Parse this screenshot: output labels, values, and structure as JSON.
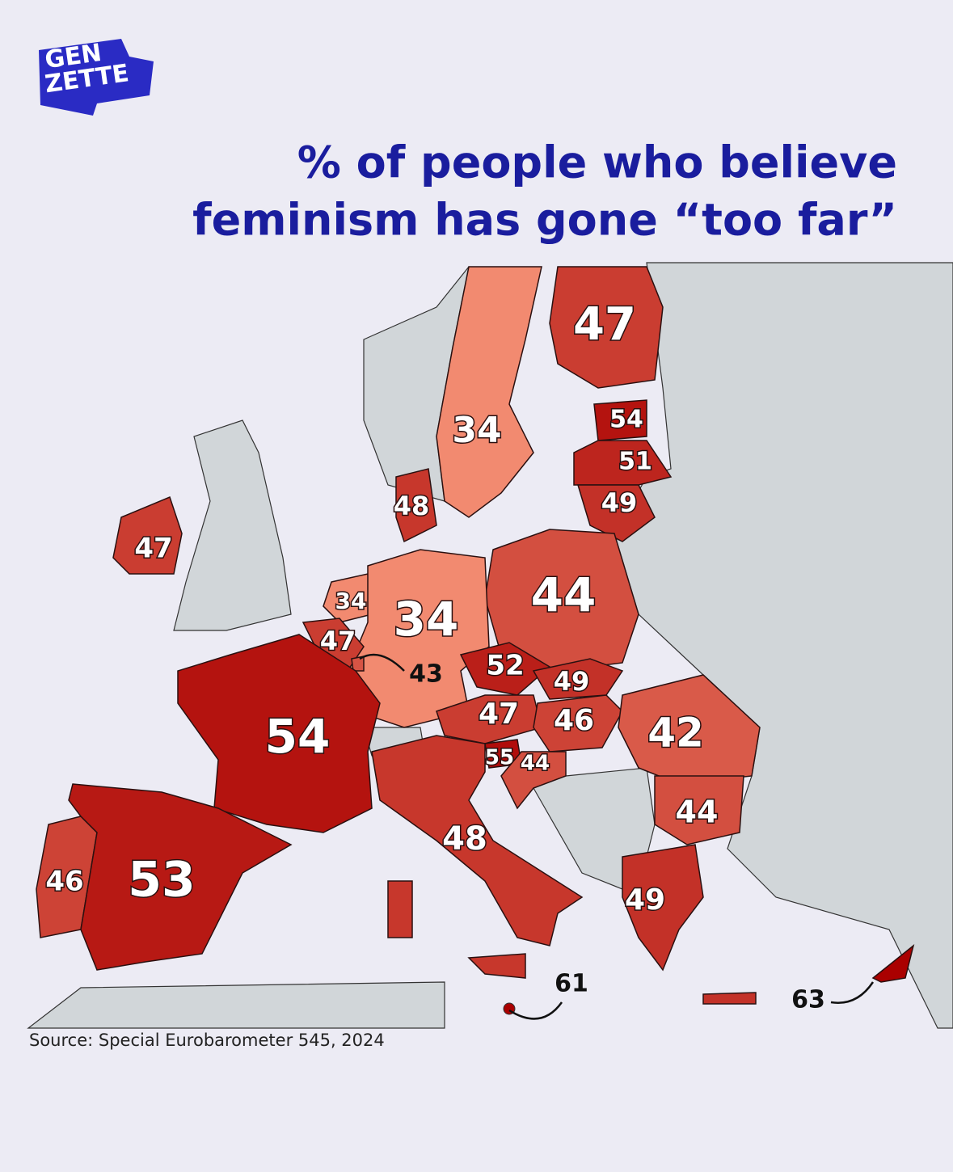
{
  "brand": {
    "line1": "GEN",
    "line2": "ZETTE"
  },
  "title": {
    "line1": "% of people who believe",
    "line2": "feminism has gone “too far”"
  },
  "regions": [
    {
      "value": 47
    },
    {
      "value": 34
    },
    {
      "value": 54
    },
    {
      "value": 51
    },
    {
      "value": 49
    },
    {
      "value": 48
    },
    {
      "value": 47
    },
    {
      "value": 44
    },
    {
      "value": 34
    },
    {
      "value": 34
    },
    {
      "value": 47
    },
    {
      "value": 43
    },
    {
      "value": 52
    },
    {
      "value": 49
    },
    {
      "value": 47
    },
    {
      "value": 46
    },
    {
      "value": 42
    },
    {
      "value": 54
    },
    {
      "value": 55
    },
    {
      "value": 44
    },
    {
      "value": 44
    },
    {
      "value": 48
    },
    {
      "value": 46
    },
    {
      "value": 53
    },
    {
      "value": 49
    },
    {
      "value": 61
    },
    {
      "value": 63
    }
  ],
  "source": "Source: Special Eurobarometer 545, 2024"
}
